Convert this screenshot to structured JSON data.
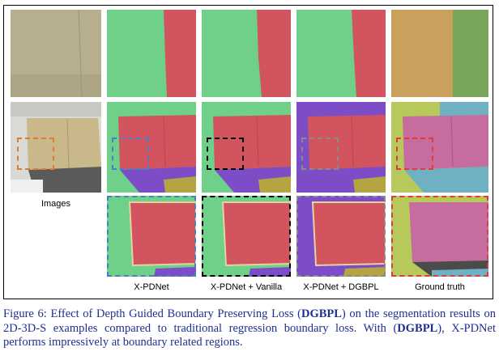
{
  "figure": {
    "labels": {
      "images": "Images",
      "xpdnet": "X-PDNet",
      "vanilla": "X-PDNet + Vanilla",
      "dgbpl": "X-PDNet + DGBPL",
      "gt": "Ground truth"
    },
    "colors": {
      "green": "#6fd08a",
      "red": "#d2545f",
      "purple": "#7d4cc7",
      "olive": "#b5a542",
      "gt_orange": "#c9a05c",
      "gt_green": "#79a55b",
      "gt_pink": "#c66c9f",
      "gt_teal": "#6fb0c3",
      "dash_orange": "#e07a3a",
      "dash_blue": "#4a7fc1",
      "dash_black": "#000000",
      "dash_gray": "#8a8a8a",
      "dash_red": "#e03a3a"
    }
  },
  "caption": {
    "prefix": "Figure 6: Effect of Depth Guided Boundary Preserving Loss (",
    "bold1": "DGBPL",
    "mid": ") on the segmentation results on 2D-3D-S examples compared to traditional regression boundary loss. With (",
    "bold2": "DGBPL",
    "suffix": "), X-PDNet performs impressively at boundary related regions."
  }
}
